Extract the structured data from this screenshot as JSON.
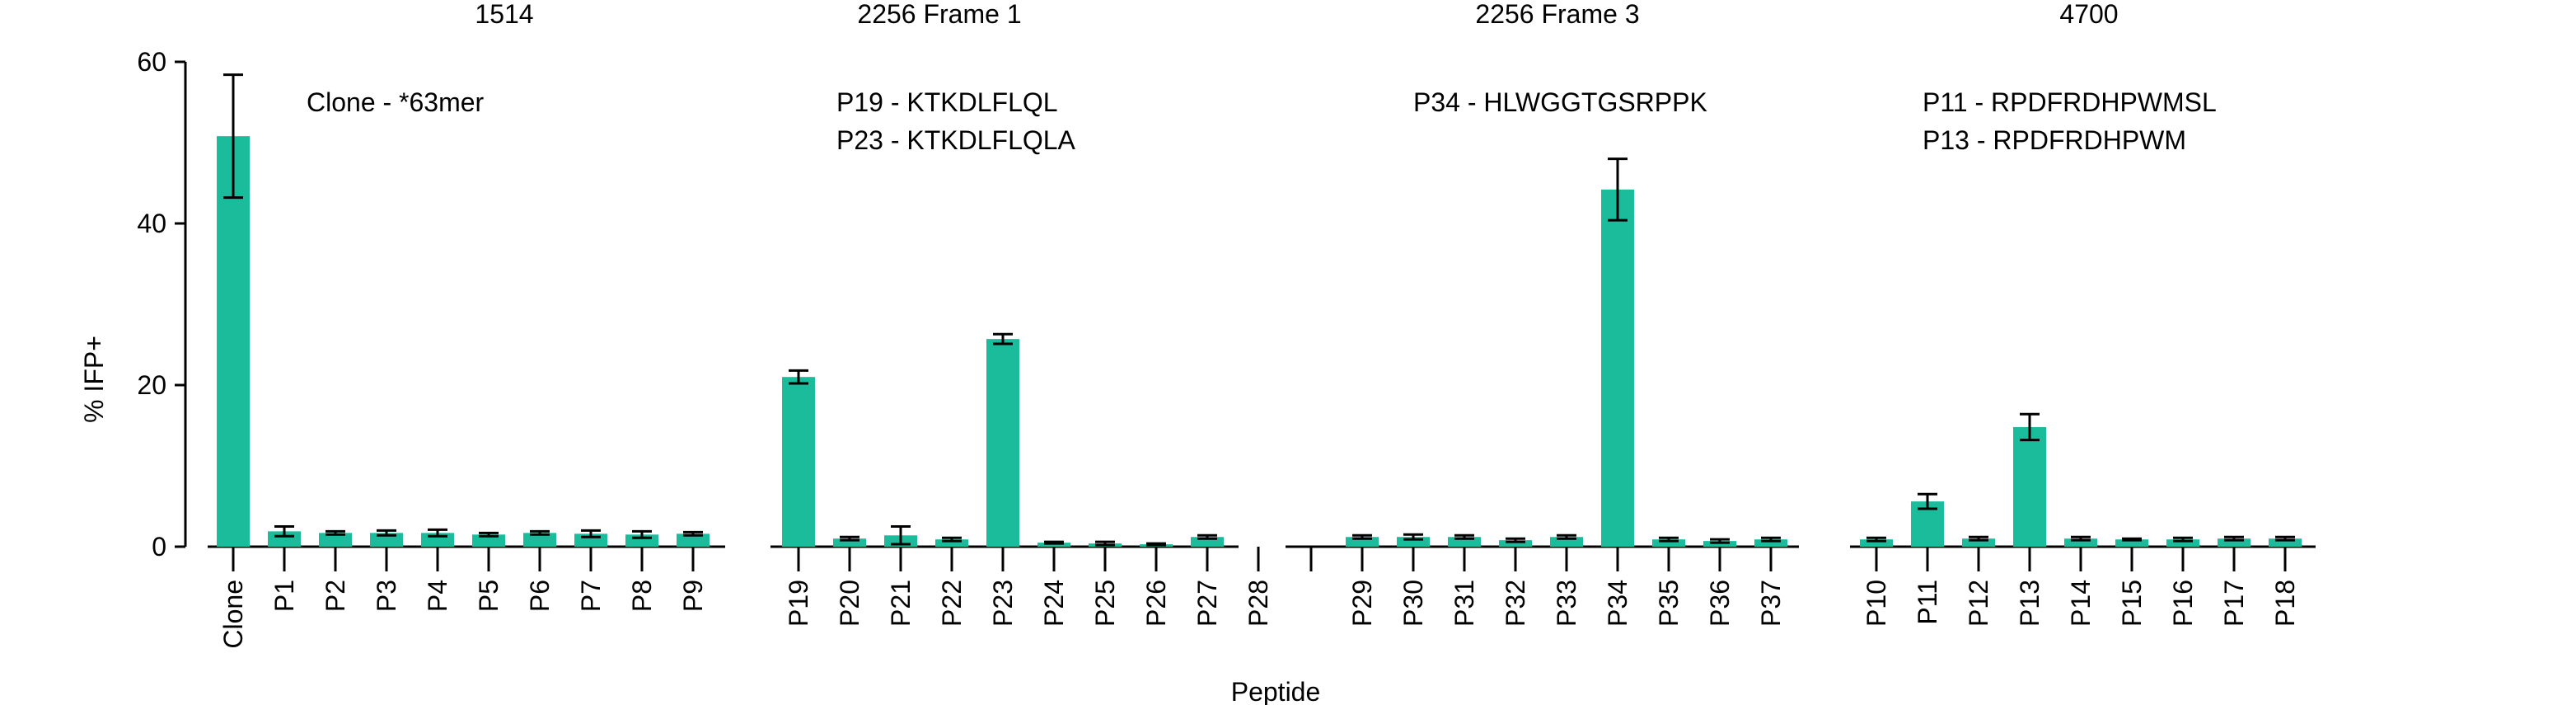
{
  "chart_data": {
    "type": "bar",
    "ylabel": "% IFP+",
    "xlabel": "Peptide",
    "ylim": [
      0,
      60
    ],
    "yticks": [
      0,
      20,
      40,
      60
    ],
    "error_bars": true,
    "colors": {
      "bar": "#1ABC9C",
      "axis": "#000000"
    },
    "groups": [
      {
        "title": "1514",
        "annotations": [
          "Clone - *63mer"
        ],
        "categories": [
          "Clone",
          "P1",
          "P2",
          "P3",
          "P4",
          "P5",
          "P6",
          "P7",
          "P8",
          "P9"
        ],
        "values": [
          50.8,
          1.9,
          1.7,
          1.7,
          1.7,
          1.5,
          1.7,
          1.6,
          1.5,
          1.6
        ],
        "errors": [
          7.6,
          0.6,
          0.2,
          0.3,
          0.4,
          0.2,
          0.2,
          0.4,
          0.4,
          0.2
        ]
      },
      {
        "title": "2256 Frame 1",
        "annotations": [
          "P19 - KTKDLFLQL",
          "P23 - KTKDLFLQLA"
        ],
        "categories": [
          "P19",
          "P20",
          "P21",
          "P22",
          "P23",
          "P24",
          "P25",
          "P26",
          "P27",
          "P28"
        ],
        "values": [
          21.0,
          1.0,
          1.4,
          0.9,
          25.7,
          0.5,
          0.4,
          0.3,
          1.2,
          0
        ],
        "errors": [
          0.8,
          0.2,
          1.1,
          0.2,
          0.6,
          0.1,
          0.2,
          0.1,
          0.2,
          0
        ]
      },
      {
        "title": "2256 Frame 3",
        "annotations": [
          "P34 - HLWGGTGSRPPK"
        ],
        "categories": [
          "P29",
          "P30",
          "P31",
          "P32",
          "P33",
          "P34",
          "P35",
          "P36",
          "P37"
        ],
        "values": [
          1.2,
          1.2,
          1.2,
          0.8,
          1.2,
          44.2,
          0.9,
          0.7,
          0.9
        ],
        "errors": [
          0.2,
          0.3,
          0.2,
          0.2,
          0.2,
          3.8,
          0.2,
          0.2,
          0.2
        ]
      },
      {
        "title": "4700",
        "annotations": [
          "P11 - RPDFRDHPWMSL",
          "P13 - RPDFRDHPWM"
        ],
        "categories": [
          "P10",
          "P11",
          "P12",
          "P13",
          "P14",
          "P15",
          "P16",
          "P17",
          "P18"
        ],
        "values": [
          0.9,
          5.6,
          1.0,
          14.8,
          1.0,
          0.9,
          0.9,
          1.0,
          1.0
        ],
        "errors": [
          0.2,
          0.9,
          0.2,
          1.6,
          0.2,
          0.1,
          0.2,
          0.2,
          0.2
        ]
      }
    ]
  }
}
